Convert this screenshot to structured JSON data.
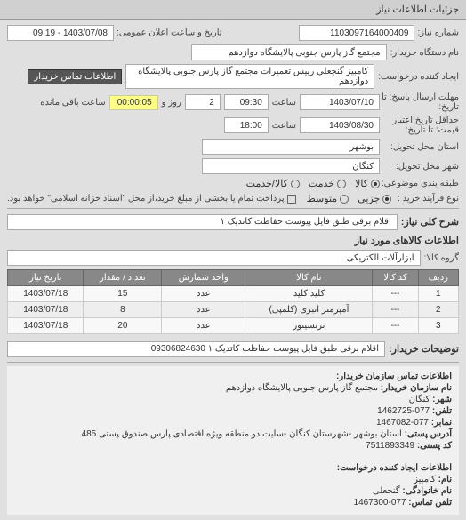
{
  "tab_title": "جزئیات اطلاعات نیاز",
  "header": {
    "reqno_label": "شماره نیاز:",
    "reqno": "1103097164000409",
    "pubdate_label": "تاریخ و ساعت اعلان عمومی:",
    "pubdate": "1403/07/08 - 09:19",
    "buyer_label": "نام دستگاه خریدار:",
    "buyer": "مجتمع گاز پارس جنوبی  پالایشگاه دوازدهم",
    "creator_label": "ایجاد کننده درخواست:",
    "creator": "کامبیز گنجعلی رییس تعمیرات مجتمع گاز پارس جنوبی  پالایشگاه دوازدهم",
    "contact_btn": "اطلاعات تماس خریدار"
  },
  "dates": {
    "deadline_label_a": "مهلت ارسال پاسخ: تا",
    "deadline_label_b": "تاریخ:",
    "deadline_date": "1403/07/10",
    "deadline_time_label": "ساعت",
    "deadline_time": "09:30",
    "remain_days": "2",
    "remain_days_label": "روز و",
    "remain_time": "00:00:05",
    "remain_time_label": "ساعت باقی مانده",
    "valid_label_a": "حداقل تاریخ اعتبار",
    "valid_label_b": "قیمت: تا تاریخ:",
    "valid_date": "1403/08/30",
    "valid_time_label": "ساعت",
    "valid_time": "18:00"
  },
  "location": {
    "province_label": "استان محل تحویل:",
    "province": "بوشهر",
    "city_label": "شهر محل تحویل:",
    "city": "کنگان"
  },
  "classification": {
    "type_label": "طبقه بندی موضوعی:",
    "radio_goods": "کالا",
    "radio_service": "خدمت",
    "radio_both": "کالا/خدمت",
    "process_label": "نوع فرآیند خرید :",
    "radio_minor": "جزیی",
    "radio_medium": "متوسط",
    "note": "پرداخت تمام یا بخشی از مبلغ خرید،از محل \"اسناد خزانه اسلامی\" خواهد بود."
  },
  "need": {
    "title_label": "شرح کلی نیاز:",
    "title": "اقلام برقی طبق فایل پیوست حفاظت کاتدیک ۱"
  },
  "goods": {
    "section_title": "اطلاعات کالاهای مورد نیاز",
    "group_label": "گروه کالا:",
    "group": "ابزارآلات الکتریکی"
  },
  "table": {
    "columns": [
      "ردیف",
      "کد کالا",
      "نام کالا",
      "واحد شمارش",
      "تعداد / مقدار",
      "تاریخ نیاز"
    ],
    "rows": [
      [
        "1",
        "---",
        "کلید  کلید",
        "عدد",
        "15",
        "1403/07/18"
      ],
      [
        "2",
        "---",
        "آمپرمتر انبری (کلمپی)",
        "عدد",
        "8",
        "1403/07/18"
      ],
      [
        "3",
        "---",
        "ترنسیتور",
        "عدد",
        "20",
        "1403/07/18"
      ]
    ]
  },
  "buyer_note": {
    "label": "توضیحات خریدار:",
    "text": "اقلام برقی طبق فایل پیوست حفاظت کاتدیک ۱ 09306824630"
  },
  "org_contact": {
    "section_title": "اطلاعات تماس سازمان خریدار:",
    "name_label": "نام سازمان خریدار:",
    "name": "مجتمع گاز پارس جنوبی پالایشگاه دوازدهم",
    "city_label": "شهر:",
    "city": "کنگان",
    "phone_label": "تلفن:",
    "phone": "077-1462725",
    "fax_label": "نمابر:",
    "fax": "077-1467082",
    "addr_label": "آدرس پستی:",
    "addr": "استان بوشهر -شهرستان کنگان -سایت دو منطقه ویژه اقتصادی پارس صندوق پستی 485",
    "postcode_label": "کد پستی:",
    "postcode": "7511893349"
  },
  "creator_contact": {
    "section_title": "اطلاعات ایجاد کننده درخواست:",
    "name_label": "نام:",
    "name": "کامبیز",
    "lastname_label": "نام خانوادگی:",
    "lastname": "گنجعلی",
    "phone_label": "تلفن تماس:",
    "phone": "077-1467300"
  },
  "colors": {
    "bg": "#e8e8e8",
    "section_bg": "#e0e0e0",
    "input_bg": "#ffffff",
    "dark_btn": "#555555",
    "yellow": "#ffff88",
    "th_bg": "#888888"
  }
}
